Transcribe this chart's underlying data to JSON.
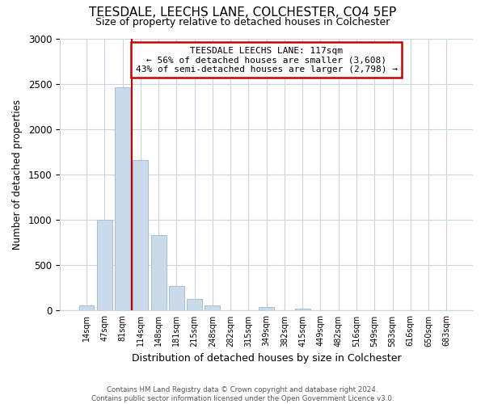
{
  "title": "TEESDALE, LEECHS LANE, COLCHESTER, CO4 5EP",
  "subtitle": "Size of property relative to detached houses in Colchester",
  "xlabel": "Distribution of detached houses by size in Colchester",
  "ylabel": "Number of detached properties",
  "bar_labels": [
    "14sqm",
    "47sqm",
    "81sqm",
    "114sqm",
    "148sqm",
    "181sqm",
    "215sqm",
    "248sqm",
    "282sqm",
    "315sqm",
    "349sqm",
    "382sqm",
    "415sqm",
    "449sqm",
    "482sqm",
    "516sqm",
    "549sqm",
    "583sqm",
    "616sqm",
    "650sqm",
    "683sqm"
  ],
  "bar_values": [
    55,
    1000,
    2460,
    1660,
    835,
    270,
    125,
    55,
    0,
    0,
    40,
    0,
    18,
    0,
    0,
    0,
    0,
    0,
    0,
    0,
    0
  ],
  "bar_color": "#c9daea",
  "bar_edge_color": "#a8bfd4",
  "reference_line_index": 2.5,
  "reference_line_color": "#cc0000",
  "annotation_line1": "TEESDALE LEECHS LANE: 117sqm",
  "annotation_line2": "← 56% of detached houses are smaller (3,608)",
  "annotation_line3": "43% of semi-detached houses are larger (2,798) →",
  "ylim": [
    0,
    3000
  ],
  "yticks": [
    0,
    500,
    1000,
    1500,
    2000,
    2500,
    3000
  ],
  "footnote": "Contains HM Land Registry data © Crown copyright and database right 2024.\nContains public sector information licensed under the Open Government Licence v3.0.",
  "background_color": "#ffffff",
  "grid_color": "#c8d4de"
}
